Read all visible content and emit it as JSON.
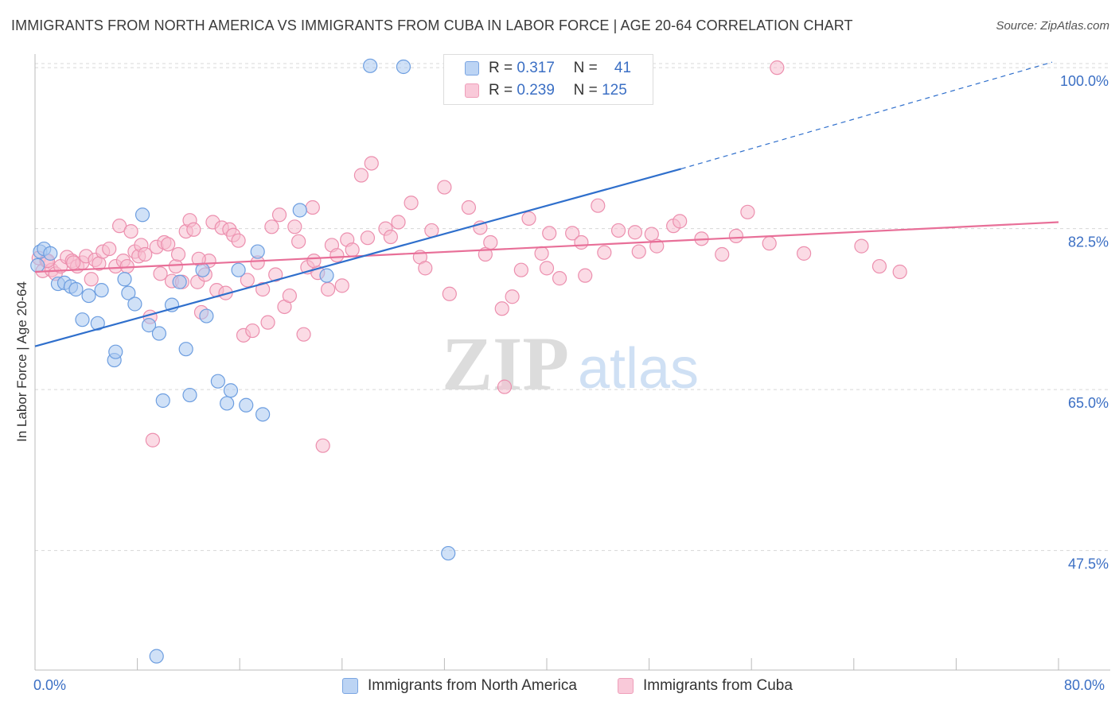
{
  "title": "IMMIGRANTS FROM NORTH AMERICA VS IMMIGRANTS FROM CUBA IN LABOR FORCE | AGE 20-64 CORRELATION CHART",
  "source": "Source: ZipAtlas.com",
  "watermark": {
    "zip": "ZIP",
    "atlas": "atlas"
  },
  "legend": {
    "rows": [
      {
        "r_label": "R =",
        "r_value": "0.317",
        "n_label": "N =",
        "n_value": "41"
      },
      {
        "r_label": "R =",
        "r_value": "0.239",
        "n_label": "N =",
        "n_value": "125"
      }
    ]
  },
  "bottom_legend": {
    "series_a": "Immigrants from North America",
    "series_b": "Immigrants from Cuba"
  },
  "colors": {
    "blue_fill": "#a9c8f0",
    "blue_stroke": "#6d9ee0",
    "blue_line": "#2f6fcc",
    "pink_fill": "#f7bdd0",
    "pink_stroke": "#ec8fae",
    "pink_line": "#e86f98",
    "grid": "#d8d8d8",
    "tick_text": "#3b6fc4"
  },
  "chart_data": {
    "type": "scatter",
    "ylabel": "In Labor Force | Age 20-64",
    "xlim": [
      0,
      80
    ],
    "ylim": [
      34.5,
      102
    ],
    "x_tick_labels": [
      "0.0%",
      "80.0%"
    ],
    "y_ticks": [
      47.5,
      65.0,
      82.5,
      100.0
    ],
    "y_tick_labels": [
      "47.5%",
      "65.0%",
      "82.5%",
      "100.0%"
    ],
    "grid": true,
    "series": [
      {
        "name": "Immigrants from North America",
        "r": 0.317,
        "n": 41,
        "trend": {
          "x0": 0,
          "y0": 69.7,
          "x1": 50.5,
          "y1": 89.0,
          "dashed_to_x": 79.5,
          "dashed_to_y": 100.6
        },
        "points": [
          [
            0.2,
            78.5
          ],
          [
            0.4,
            80.0
          ],
          [
            0.7,
            80.3
          ],
          [
            1.2,
            79.8
          ],
          [
            1.8,
            76.5
          ],
          [
            2.3,
            76.6
          ],
          [
            2.8,
            76.2
          ],
          [
            3.2,
            75.9
          ],
          [
            4.2,
            75.2
          ],
          [
            3.7,
            72.6
          ],
          [
            4.9,
            72.2
          ],
          [
            5.2,
            75.8
          ],
          [
            7.0,
            77.0
          ],
          [
            7.3,
            75.5
          ],
          [
            7.8,
            74.3
          ],
          [
            6.2,
            68.2
          ],
          [
            6.3,
            69.1
          ],
          [
            8.4,
            84.0
          ],
          [
            8.9,
            72.0
          ],
          [
            9.7,
            71.1
          ],
          [
            10.0,
            63.8
          ],
          [
            10.7,
            74.2
          ],
          [
            11.3,
            76.7
          ],
          [
            11.8,
            69.4
          ],
          [
            12.1,
            64.4
          ],
          [
            13.1,
            78.0
          ],
          [
            13.4,
            73.0
          ],
          [
            14.3,
            65.9
          ],
          [
            15.0,
            63.5
          ],
          [
            15.3,
            64.9
          ],
          [
            15.9,
            78.0
          ],
          [
            16.5,
            63.3
          ],
          [
            17.4,
            80.0
          ],
          [
            17.8,
            62.3
          ],
          [
            20.7,
            84.5
          ],
          [
            22.8,
            77.4
          ],
          [
            26.2,
            100.2
          ],
          [
            28.8,
            100.1
          ],
          [
            32.3,
            47.2
          ],
          [
            47.2,
            100.2
          ],
          [
            9.5,
            36.0
          ]
        ]
      },
      {
        "name": "Immigrants from Cuba",
        "r": 0.239,
        "n": 125,
        "trend": {
          "x0": 0,
          "y0": 77.8,
          "x1": 80.0,
          "y1": 83.2
        },
        "points": [
          [
            0.3,
            79.3
          ],
          [
            0.6,
            77.9
          ],
          [
            0.9,
            79.0
          ],
          [
            1.3,
            78.0
          ],
          [
            1.6,
            77.6
          ],
          [
            2.0,
            78.4
          ],
          [
            2.5,
            79.4
          ],
          [
            2.9,
            79.0
          ],
          [
            3.3,
            78.4
          ],
          [
            3.7,
            78.8
          ],
          [
            4.0,
            79.5
          ],
          [
            4.4,
            77.0
          ],
          [
            4.7,
            79.1
          ],
          [
            5.0,
            78.7
          ],
          [
            5.3,
            80.0
          ],
          [
            5.8,
            80.3
          ],
          [
            6.3,
            78.4
          ],
          [
            6.6,
            82.8
          ],
          [
            6.9,
            79.0
          ],
          [
            7.2,
            78.4
          ],
          [
            7.5,
            82.2
          ],
          [
            7.8,
            80.0
          ],
          [
            8.1,
            79.5
          ],
          [
            8.3,
            80.7
          ],
          [
            8.6,
            79.7
          ],
          [
            9.0,
            72.9
          ],
          [
            9.2,
            59.5
          ],
          [
            9.5,
            80.5
          ],
          [
            9.8,
            77.6
          ],
          [
            10.1,
            81.0
          ],
          [
            10.4,
            80.8
          ],
          [
            10.7,
            76.8
          ],
          [
            11.0,
            78.4
          ],
          [
            11.2,
            79.7
          ],
          [
            11.5,
            76.7
          ],
          [
            11.8,
            82.2
          ],
          [
            12.1,
            83.4
          ],
          [
            12.4,
            82.4
          ],
          [
            12.7,
            76.7
          ],
          [
            13.0,
            73.4
          ],
          [
            13.3,
            77.5
          ],
          [
            13.6,
            79.0
          ],
          [
            13.9,
            83.2
          ],
          [
            14.2,
            75.8
          ],
          [
            14.6,
            82.6
          ],
          [
            14.9,
            75.5
          ],
          [
            15.2,
            82.4
          ],
          [
            15.5,
            81.8
          ],
          [
            15.9,
            81.2
          ],
          [
            16.3,
            70.9
          ],
          [
            16.6,
            76.9
          ],
          [
            17.0,
            71.4
          ],
          [
            17.4,
            78.8
          ],
          [
            17.8,
            75.9
          ],
          [
            18.2,
            72.3
          ],
          [
            18.5,
            82.7
          ],
          [
            18.8,
            77.5
          ],
          [
            19.1,
            84.0
          ],
          [
            19.5,
            74.0
          ],
          [
            19.9,
            75.2
          ],
          [
            20.3,
            82.7
          ],
          [
            20.6,
            81.1
          ],
          [
            21.0,
            71.0
          ],
          [
            21.3,
            78.3
          ],
          [
            21.7,
            84.8
          ],
          [
            22.1,
            77.7
          ],
          [
            22.5,
            58.9
          ],
          [
            22.9,
            75.9
          ],
          [
            23.2,
            80.7
          ],
          [
            23.6,
            79.6
          ],
          [
            24.0,
            76.3
          ],
          [
            24.4,
            81.3
          ],
          [
            24.8,
            80.2
          ],
          [
            25.5,
            88.3
          ],
          [
            26.3,
            89.6
          ],
          [
            27.4,
            82.5
          ],
          [
            27.8,
            81.6
          ],
          [
            28.4,
            83.2
          ],
          [
            29.4,
            85.3
          ],
          [
            30.1,
            79.4
          ],
          [
            30.5,
            78.2
          ],
          [
            31.0,
            82.3
          ],
          [
            32.0,
            87.0
          ],
          [
            32.4,
            75.4
          ],
          [
            33.9,
            84.8
          ],
          [
            34.8,
            82.6
          ],
          [
            35.2,
            79.7
          ],
          [
            35.6,
            81.0
          ],
          [
            36.5,
            73.8
          ],
          [
            36.7,
            65.3
          ],
          [
            37.3,
            75.1
          ],
          [
            38.0,
            78.0
          ],
          [
            38.6,
            83.6
          ],
          [
            39.6,
            79.8
          ],
          [
            40.0,
            78.2
          ],
          [
            40.2,
            82.0
          ],
          [
            41.0,
            77.1
          ],
          [
            42.0,
            82.0
          ],
          [
            42.7,
            81.0
          ],
          [
            43.0,
            77.4
          ],
          [
            44.0,
            85.0
          ],
          [
            45.6,
            82.3
          ],
          [
            46.9,
            82.1
          ],
          [
            47.2,
            80.0
          ],
          [
            48.2,
            81.9
          ],
          [
            48.6,
            80.6
          ],
          [
            49.9,
            82.8
          ],
          [
            50.4,
            83.3
          ],
          [
            52.1,
            81.4
          ],
          [
            53.7,
            79.7
          ],
          [
            54.8,
            81.7
          ],
          [
            55.7,
            84.3
          ],
          [
            57.4,
            80.9
          ],
          [
            60.1,
            79.8
          ],
          [
            64.6,
            80.6
          ],
          [
            66.0,
            78.4
          ],
          [
            67.6,
            77.8
          ],
          [
            58.0,
            100.0
          ],
          [
            1.0,
            79.0
          ],
          [
            3.0,
            78.8
          ],
          [
            12.8,
            79.2
          ],
          [
            21.8,
            79.0
          ],
          [
            26.0,
            81.5
          ],
          [
            44.5,
            79.9
          ]
        ]
      }
    ]
  }
}
